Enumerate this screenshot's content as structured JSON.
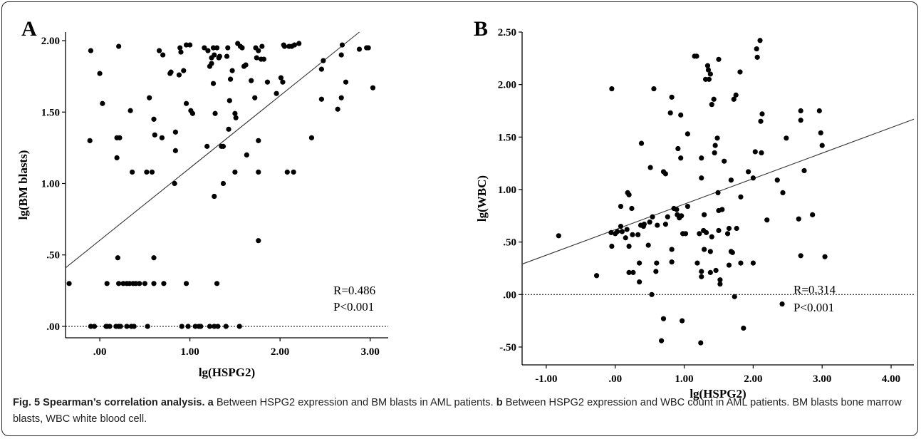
{
  "caption": {
    "fig_label": "Fig. 5",
    "title": "Spearman’s correlation analysis.",
    "a_letter": "a",
    "a_text": "Between HSPG2 expression and BM blasts in AML patients.",
    "b_letter": "b",
    "b_text": "Between HSPG2 expression and WBC count in AML patients. BM blasts bone marrow blasts, WBC white blood cell."
  },
  "chart_data": [
    {
      "type": "scatter",
      "panel_label": "A",
      "xlabel": "lg(HSPG2)",
      "ylabel": "lg(BM blasts)",
      "xlim": [
        -0.38,
        3.2
      ],
      "ylim": [
        -0.08,
        2.06
      ],
      "xticks": [
        0,
        1,
        2,
        3
      ],
      "xtick_labels": [
        ".00",
        "1.00",
        "2.00",
        "3.00"
      ],
      "yticks": [
        0,
        0.5,
        1,
        1.5,
        2
      ],
      "ytick_labels": [
        ".00",
        ".50",
        "1.00",
        "1.50",
        "2.00"
      ],
      "reference_line_y": 0,
      "fit_line": [
        [
          -0.38,
          0.41
        ],
        [
          2.88,
          2.06
        ]
      ],
      "annotations": [
        "R=0.486",
        "P<0.001"
      ],
      "points": [
        [
          -0.1,
          1.93
        ],
        [
          -0.11,
          1.3
        ],
        [
          0.03,
          1.56
        ],
        [
          0.0,
          1.77
        ],
        [
          0.21,
          1.96
        ],
        [
          0.19,
          1.32
        ],
        [
          0.22,
          1.32
        ],
        [
          0.19,
          1.18
        ],
        [
          0.2,
          0.48
        ],
        [
          0.34,
          1.51
        ],
        [
          0.36,
          1.08
        ],
        [
          0.52,
          1.08
        ],
        [
          0.58,
          1.08
        ],
        [
          0.55,
          1.6
        ],
        [
          0.6,
          1.45
        ],
        [
          0.61,
          1.34
        ],
        [
          0.66,
          1.93
        ],
        [
          0.7,
          1.9
        ],
        [
          0.69,
          1.32
        ],
        [
          0.78,
          1.77
        ],
        [
          0.79,
          1.78
        ],
        [
          0.84,
          1.36
        ],
        [
          0.84,
          1.23
        ],
        [
          0.83,
          1.0
        ],
        [
          0.88,
          1.76
        ],
        [
          0.89,
          1.95
        ],
        [
          0.9,
          1.92
        ],
        [
          0.93,
          1.79
        ],
        [
          0.96,
          1.97
        ],
        [
          0.96,
          1.56
        ],
        [
          1.0,
          1.97
        ],
        [
          1.01,
          1.51
        ],
        [
          1.03,
          1.49
        ],
        [
          1.16,
          1.95
        ],
        [
          1.19,
          1.26
        ],
        [
          1.2,
          1.93
        ],
        [
          1.22,
          1.82
        ],
        [
          1.24,
          1.88
        ],
        [
          1.24,
          1.84
        ],
        [
          1.26,
          1.95
        ],
        [
          1.26,
          1.7
        ],
        [
          1.27,
          1.9
        ],
        [
          1.27,
          0.91
        ],
        [
          1.28,
          1.49
        ],
        [
          1.3,
          1.95
        ],
        [
          1.32,
          1.88
        ],
        [
          1.35,
          1.26
        ],
        [
          1.33,
          1.89
        ],
        [
          1.37,
          1.26
        ],
        [
          1.37,
          1.0
        ],
        [
          1.41,
          1.89
        ],
        [
          1.42,
          1.95
        ],
        [
          1.43,
          1.38
        ],
        [
          1.44,
          1.58
        ],
        [
          1.45,
          1.73
        ],
        [
          1.47,
          1.79
        ],
        [
          1.5,
          1.49
        ],
        [
          1.5,
          1.08
        ],
        [
          1.51,
          1.46
        ],
        [
          1.53,
          1.98
        ],
        [
          1.56,
          1.96
        ],
        [
          1.58,
          1.95
        ],
        [
          1.6,
          1.82
        ],
        [
          1.62,
          1.83
        ],
        [
          1.63,
          1.2
        ],
        [
          1.68,
          1.72
        ],
        [
          1.72,
          1.6
        ],
        [
          1.73,
          1.95
        ],
        [
          1.74,
          1.88
        ],
        [
          1.76,
          1.93
        ],
        [
          1.76,
          1.3
        ],
        [
          1.76,
          1.08
        ],
        [
          1.8,
          1.96
        ],
        [
          1.79,
          1.87
        ],
        [
          1.82,
          1.87
        ],
        [
          1.86,
          1.71
        ],
        [
          1.96,
          1.63
        ],
        [
          2.01,
          1.74
        ],
        [
          2.03,
          1.71
        ],
        [
          2.04,
          1.97
        ],
        [
          2.05,
          1.96
        ],
        [
          2.08,
          1.08
        ],
        [
          2.1,
          1.96
        ],
        [
          2.13,
          1.96
        ],
        [
          2.15,
          1.08
        ],
        [
          2.16,
          1.97
        ],
        [
          2.21,
          1.98
        ],
        [
          2.35,
          1.32
        ],
        [
          2.46,
          1.8
        ],
        [
          2.46,
          1.59
        ],
        [
          2.48,
          1.86
        ],
        [
          2.64,
          1.52
        ],
        [
          2.68,
          1.9
        ],
        [
          2.68,
          1.6
        ],
        [
          2.69,
          1.97
        ],
        [
          2.73,
          1.71
        ],
        [
          2.88,
          1.94
        ],
        [
          2.96,
          1.95
        ],
        [
          2.98,
          1.95
        ],
        [
          3.03,
          1.67
        ],
        [
          1.76,
          0.6
        ],
        [
          -0.34,
          0.3
        ],
        [
          0.08,
          0.3
        ],
        [
          0.21,
          0.3
        ],
        [
          0.26,
          0.3
        ],
        [
          0.3,
          0.3
        ],
        [
          0.33,
          0.3
        ],
        [
          0.37,
          0.3
        ],
        [
          0.4,
          0.3
        ],
        [
          0.44,
          0.3
        ],
        [
          0.5,
          0.3
        ],
        [
          0.6,
          0.3
        ],
        [
          0.71,
          0.3
        ],
        [
          0.96,
          0.3
        ],
        [
          1.3,
          0.3
        ],
        [
          0.6,
          0.48
        ],
        [
          -0.1,
          0.0
        ],
        [
          -0.06,
          0.0
        ],
        [
          0.07,
          0.0
        ],
        [
          0.08,
          0.0
        ],
        [
          0.11,
          0.0
        ],
        [
          0.18,
          0.0
        ],
        [
          0.21,
          0.0
        ],
        [
          0.23,
          0.0
        ],
        [
          0.3,
          0.0
        ],
        [
          0.35,
          0.0
        ],
        [
          0.38,
          0.0
        ],
        [
          0.53,
          0.0
        ],
        [
          0.91,
          0.0
        ],
        [
          0.98,
          0.0
        ],
        [
          1.06,
          0.0
        ],
        [
          1.1,
          0.0
        ],
        [
          1.12,
          0.0
        ],
        [
          1.22,
          0.0
        ],
        [
          1.27,
          0.0
        ],
        [
          1.31,
          0.0
        ],
        [
          1.4,
          0.0
        ],
        [
          1.55,
          0.0
        ]
      ]
    },
    {
      "type": "scatter",
      "panel_label": "B",
      "xlabel": "lg(HSPG2)",
      "ylabel": "lg(WBC)",
      "xlim": [
        -1.35,
        4.33
      ],
      "ylim": [
        -0.67,
        2.5
      ],
      "xticks": [
        -1,
        0,
        1,
        2,
        3,
        4
      ],
      "xtick_labels": [
        "-1.00",
        ".00",
        "1.00",
        "2.00",
        "3.00",
        "4.00"
      ],
      "yticks": [
        -0.5,
        0,
        0.5,
        1,
        1.5,
        2,
        2.5
      ],
      "ytick_labels": [
        "-.50",
        ".00",
        ".50",
        "1.00",
        "1.50",
        "2.00",
        "2.50"
      ],
      "reference_line_y": 0,
      "fit_line": [
        [
          -1.35,
          0.29
        ],
        [
          4.33,
          1.67
        ]
      ],
      "annotations": [
        "R=0.314",
        "P<0.001"
      ],
      "points": [
        [
          -0.82,
          0.56
        ],
        [
          -0.27,
          0.18
        ],
        [
          -0.05,
          1.96
        ],
        [
          -0.06,
          0.59
        ],
        [
          -0.05,
          0.46
        ],
        [
          0.0,
          0.58
        ],
        [
          0.03,
          0.6
        ],
        [
          0.08,
          0.65
        ],
        [
          0.08,
          0.84
        ],
        [
          0.1,
          0.6
        ],
        [
          0.15,
          0.54
        ],
        [
          0.17,
          0.62
        ],
        [
          0.18,
          0.97
        ],
        [
          0.2,
          0.95
        ],
        [
          0.2,
          0.46
        ],
        [
          0.2,
          0.21
        ],
        [
          0.25,
          0.57
        ],
        [
          0.24,
          0.82
        ],
        [
          0.26,
          0.21
        ],
        [
          0.33,
          0.57
        ],
        [
          0.35,
          0.3
        ],
        [
          0.35,
          0.12
        ],
        [
          0.37,
          0.66
        ],
        [
          0.38,
          1.44
        ],
        [
          0.41,
          0.65
        ],
        [
          0.42,
          0.67
        ],
        [
          0.48,
          0.47
        ],
        [
          0.5,
          0.69
        ],
        [
          0.51,
          1.21
        ],
        [
          0.54,
          0.74
        ],
        [
          0.53,
          0.0
        ],
        [
          0.56,
          1.96
        ],
        [
          0.59,
          0.22
        ],
        [
          0.6,
          0.3
        ],
        [
          0.61,
          0.66
        ],
        [
          0.67,
          -0.44
        ],
        [
          0.7,
          1.17
        ],
        [
          0.7,
          -0.23
        ],
        [
          0.73,
          1.15
        ],
        [
          0.73,
          0.67
        ],
        [
          0.76,
          0.74
        ],
        [
          0.8,
          1.73
        ],
        [
          0.82,
          1.88
        ],
        [
          0.82,
          0.43
        ],
        [
          0.82,
          0.31
        ],
        [
          0.85,
          0.82
        ],
        [
          0.89,
          0.81
        ],
        [
          0.9,
          0.76
        ],
        [
          0.91,
          1.39
        ],
        [
          0.93,
          0.73
        ],
        [
          0.95,
          1.71
        ],
        [
          0.95,
          1.3
        ],
        [
          0.96,
          0.75
        ],
        [
          0.97,
          -0.25
        ],
        [
          0.98,
          0.58
        ],
        [
          1.02,
          0.58
        ],
        [
          1.05,
          1.53
        ],
        [
          1.05,
          0.84
        ],
        [
          1.15,
          2.27
        ],
        [
          1.18,
          2.27
        ],
        [
          1.19,
          0.3
        ],
        [
          1.22,
          0.58
        ],
        [
          1.25,
          1.3
        ],
        [
          1.25,
          1.11
        ],
        [
          1.25,
          0.22
        ],
        [
          1.24,
          -0.46
        ],
        [
          1.25,
          0.17
        ],
        [
          1.28,
          0.61
        ],
        [
          1.29,
          0.43
        ],
        [
          1.29,
          0.76
        ],
        [
          1.31,
          2.05
        ],
        [
          1.32,
          0.59
        ],
        [
          1.34,
          2.18
        ],
        [
          1.35,
          2.14
        ],
        [
          1.36,
          2.05
        ],
        [
          1.38,
          2.1
        ],
        [
          1.38,
          0.21
        ],
        [
          1.38,
          0.41
        ],
        [
          1.4,
          1.81
        ],
        [
          1.4,
          0.55
        ],
        [
          1.43,
          1.86
        ],
        [
          1.45,
          1.42
        ],
        [
          1.44,
          1.35
        ],
        [
          1.46,
          0.23
        ],
        [
          1.5,
          2.24
        ],
        [
          1.48,
          1.49
        ],
        [
          1.49,
          0.97
        ],
        [
          1.5,
          0.61
        ],
        [
          1.5,
          0.8
        ],
        [
          1.52,
          0.14
        ],
        [
          1.52,
          0.1
        ],
        [
          1.55,
          0.81
        ],
        [
          1.58,
          1.27
        ],
        [
          1.63,
          0.58
        ],
        [
          1.65,
          0.28
        ],
        [
          1.65,
          0.63
        ],
        [
          1.68,
          1.09
        ],
        [
          1.68,
          0.41
        ],
        [
          1.7,
          0.4
        ],
        [
          1.72,
          1.86
        ],
        [
          1.73,
          -0.02
        ],
        [
          1.75,
          1.9
        ],
        [
          1.76,
          0.63
        ],
        [
          1.81,
          2.12
        ],
        [
          1.82,
          0.3
        ],
        [
          1.82,
          0.93
        ],
        [
          1.86,
          -0.32
        ],
        [
          1.93,
          1.17
        ],
        [
          2.0,
          1.11
        ],
        [
          2.0,
          0.3
        ],
        [
          2.03,
          1.36
        ],
        [
          2.05,
          2.34
        ],
        [
          2.06,
          2.26
        ],
        [
          2.1,
          2.42
        ],
        [
          2.12,
          1.35
        ],
        [
          2.11,
          1.65
        ],
        [
          2.13,
          1.72
        ],
        [
          2.2,
          0.71
        ],
        [
          2.35,
          1.09
        ],
        [
          2.43,
          0.97
        ],
        [
          2.42,
          -0.09
        ],
        [
          2.48,
          1.49
        ],
        [
          2.66,
          0.72
        ],
        [
          2.69,
          0.37
        ],
        [
          2.69,
          1.75
        ],
        [
          2.69,
          1.66
        ],
        [
          2.74,
          1.18
        ],
        [
          2.86,
          0.76
        ],
        [
          2.96,
          1.75
        ],
        [
          2.98,
          1.54
        ],
        [
          3.0,
          1.42
        ],
        [
          3.04,
          0.36
        ]
      ]
    }
  ]
}
